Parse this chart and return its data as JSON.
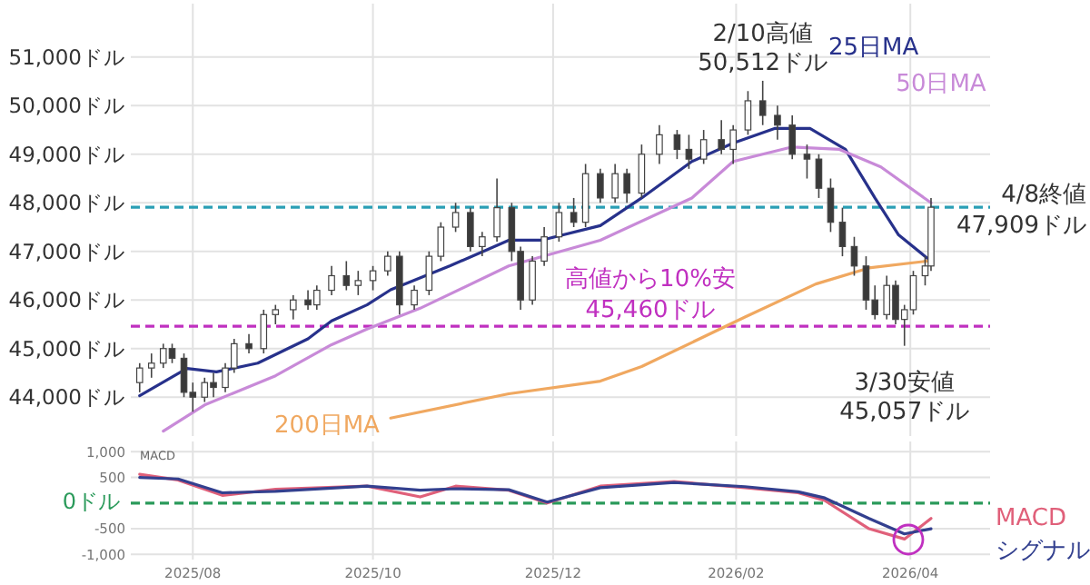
{
  "chart_data": [
    {
      "type": "candlestick",
      "tick_labels": "y",
      "grid": true,
      "x": [
        "2025-07-14",
        "2025-07-18",
        "2025-07-22",
        "2025-07-25",
        "2025-07-29",
        "2025-08-01",
        "2025-08-05",
        "2025-08-08",
        "2025-08-12",
        "2025-08-15",
        "2025-08-20",
        "2025-08-25",
        "2025-08-29",
        "2025-09-04",
        "2025-09-09",
        "2025-09-12",
        "2025-09-17",
        "2025-09-22",
        "2025-09-26",
        "2025-10-01",
        "2025-10-06",
        "2025-10-10",
        "2025-10-15",
        "2025-10-20",
        "2025-10-24",
        "2025-10-29",
        "2025-11-03",
        "2025-11-07",
        "2025-11-12",
        "2025-11-17",
        "2025-11-20",
        "2025-11-24",
        "2025-11-28",
        "2025-12-03",
        "2025-12-08",
        "2025-12-12",
        "2025-12-17",
        "2025-12-22",
        "2025-12-26",
        "2025-12-31",
        "2026-01-06",
        "2026-01-12",
        "2026-01-16",
        "2026-01-21",
        "2026-01-27",
        "2026-01-31",
        "2026-02-05",
        "2026-02-10",
        "2026-02-15",
        "2026-02-20",
        "2026-02-25",
        "2026-03-01",
        "2026-03-05",
        "2026-03-09",
        "2026-03-13",
        "2026-03-17",
        "2026-03-20",
        "2026-03-24",
        "2026-03-27",
        "2026-03-30",
        "2026-04-02",
        "2026-04-06",
        "2026-04-08"
      ],
      "ohlc": [
        [
          44300,
          44700,
          44100,
          44600
        ],
        [
          44600,
          44900,
          44400,
          44700
        ],
        [
          44700,
          45100,
          44600,
          45000
        ],
        [
          45000,
          45100,
          44700,
          44800
        ],
        [
          44800,
          44900,
          44000,
          44100
        ],
        [
          44100,
          44300,
          43700,
          44000
        ],
        [
          44000,
          44400,
          43900,
          44300
        ],
        [
          44300,
          44500,
          44000,
          44200
        ],
        [
          44200,
          44700,
          44100,
          44600
        ],
        [
          44600,
          45200,
          44500,
          45100
        ],
        [
          45100,
          45300,
          44900,
          45000
        ],
        [
          45000,
          45800,
          44900,
          45700
        ],
        [
          45700,
          45900,
          45500,
          45800
        ],
        [
          45800,
          46100,
          45600,
          46000
        ],
        [
          46000,
          46200,
          45800,
          45900
        ],
        [
          45900,
          46300,
          45800,
          46200
        ],
        [
          46200,
          46700,
          46100,
          46500
        ],
        [
          46500,
          46800,
          46200,
          46300
        ],
        [
          46300,
          46600,
          46100,
          46400
        ],
        [
          46400,
          46700,
          46200,
          46600
        ],
        [
          46600,
          47000,
          46500,
          46900
        ],
        [
          46900,
          47000,
          45700,
          45900
        ],
        [
          45900,
          46300,
          45800,
          46200
        ],
        [
          46200,
          47000,
          46100,
          46900
        ],
        [
          46900,
          47600,
          46800,
          47500
        ],
        [
          47500,
          48000,
          47400,
          47800
        ],
        [
          47800,
          47900,
          47000,
          47100
        ],
        [
          47100,
          47400,
          46900,
          47300
        ],
        [
          47300,
          48500,
          47200,
          47900
        ],
        [
          47900,
          48000,
          46800,
          47000
        ],
        [
          47000,
          47100,
          45800,
          46000
        ],
        [
          46000,
          46900,
          45900,
          46800
        ],
        [
          46800,
          47500,
          46700,
          47300
        ],
        [
          47300,
          48000,
          47200,
          47800
        ],
        [
          47800,
          48100,
          47500,
          47600
        ],
        [
          47600,
          48800,
          47500,
          48600
        ],
        [
          48600,
          48700,
          48000,
          48100
        ],
        [
          48100,
          48800,
          48000,
          48600
        ],
        [
          48600,
          48700,
          48000,
          48200
        ],
        [
          48200,
          49200,
          48100,
          49000
        ],
        [
          49000,
          49600,
          48800,
          49400
        ],
        [
          49400,
          49500,
          48900,
          49100
        ],
        [
          49100,
          49400,
          48700,
          48900
        ],
        [
          48900,
          49500,
          48800,
          49300
        ],
        [
          49300,
          49700,
          49000,
          49100
        ],
        [
          49100,
          49600,
          48800,
          49500
        ],
        [
          49500,
          50300,
          49400,
          50100
        ],
        [
          50100,
          50512,
          49600,
          49800
        ],
        [
          49800,
          50000,
          49300,
          49600
        ],
        [
          49600,
          49800,
          48900,
          49000
        ],
        [
          49000,
          49200,
          48500,
          48900
        ],
        [
          48900,
          49000,
          48100,
          48300
        ],
        [
          48300,
          48500,
          47400,
          47600
        ],
        [
          47600,
          47900,
          46900,
          47100
        ],
        [
          47100,
          47300,
          46500,
          46700
        ],
        [
          46700,
          46900,
          45800,
          46000
        ],
        [
          46000,
          46300,
          45600,
          45700
        ],
        [
          45700,
          46500,
          45600,
          46300
        ],
        [
          46300,
          46400,
          45500,
          45600
        ],
        [
          45600,
          45900,
          45057,
          45800
        ],
        [
          45800,
          46600,
          45700,
          46500
        ],
        [
          46500,
          46900,
          46300,
          46700
        ],
        [
          46700,
          48100,
          46600,
          47909
        ]
      ],
      "series": [
        {
          "type": "line",
          "name": "25日MA",
          "color": "#27318b",
          "x": [
            "2025-07-14",
            "2025-07-30",
            "2025-08-09",
            "2025-08-23",
            "2025-09-09",
            "2025-09-17",
            "2025-09-29",
            "2025-10-07",
            "2025-10-27",
            "2025-11-16",
            "2025-11-27",
            "2025-12-17",
            "2025-12-31",
            "2026-01-17",
            "2026-01-31",
            "2026-02-14",
            "2026-02-26",
            "2026-03-10",
            "2026-03-20",
            "2026-03-28",
            "2026-04-08"
          ],
          "values": [
            44030,
            44590,
            44520,
            44700,
            45200,
            45570,
            45900,
            46210,
            46700,
            47230,
            47230,
            47530,
            48100,
            48850,
            49230,
            49530,
            49530,
            49100,
            48100,
            47340,
            46800
          ]
        },
        {
          "type": "line",
          "name": "50日MA",
          "color": "#c88ad8",
          "x": [
            "2025-07-22",
            "2025-08-05",
            "2025-08-29",
            "2025-09-17",
            "2025-09-29",
            "2025-10-17",
            "2025-11-16",
            "2025-12-17",
            "2026-01-17",
            "2026-01-31",
            "2026-02-20",
            "2026-03-08",
            "2026-03-22",
            "2026-04-08"
          ],
          "values": [
            43300,
            43840,
            44440,
            45080,
            45400,
            45830,
            46700,
            47230,
            48100,
            48850,
            49150,
            49100,
            48740,
            48000
          ]
        },
        {
          "type": "line",
          "name": "200日MA",
          "color": "#f0a860",
          "x": [
            "2025-10-07",
            "2025-11-16",
            "2025-12-17",
            "2025-12-31",
            "2026-02-04",
            "2026-02-28",
            "2026-03-18",
            "2026-04-08"
          ],
          "values": [
            43570,
            44070,
            44330,
            44630,
            45650,
            46330,
            46660,
            46810
          ]
        }
      ],
      "xlim": [
        "2025-07-11",
        "2026-04-28"
      ],
      "ylim": [
        43200,
        52100
      ],
      "xticks": [
        {
          "value": "2025-08-01",
          "label": null
        },
        {
          "value": "2025-10-01",
          "label": null
        },
        {
          "value": "2025-12-01",
          "label": null
        },
        {
          "value": "2026-02-01",
          "label": null
        },
        {
          "value": "2026-04-01",
          "label": null
        }
      ],
      "yticks": [
        {
          "value": 44000,
          "label": "44,000ドル"
        },
        {
          "value": 45000,
          "label": "45,000ドル"
        },
        {
          "value": 46000,
          "label": "46,000ドル"
        },
        {
          "value": 47000,
          "label": "47,000ドル"
        },
        {
          "value": 48000,
          "label": "48,000ドル"
        },
        {
          "value": 49000,
          "label": "49,000ドル"
        },
        {
          "value": 50000,
          "label": "50,000ドル"
        },
        {
          "value": 51000,
          "label": "51,000ドル"
        }
      ],
      "ref_lines": [
        {
          "axis": "y",
          "value": 47909,
          "label": "4/8終値 47,909ドル",
          "color": "#2a9fb5",
          "line_style": "dashed"
        },
        {
          "axis": "y",
          "value": 45460,
          "label": "高値から10%安 45,460ドル",
          "color": "#c030c0",
          "line_style": "dashed"
        }
      ],
      "annotations": [
        {
          "text": "2/10高値 50,512ドル",
          "x": "2026-02-10",
          "y": 50512
        },
        {
          "text": "3/30安値 45,057ドル",
          "x": "2026-03-30",
          "y": 45057
        }
      ]
    },
    {
      "type": "line",
      "title": "MACD",
      "grid": true,
      "x": [
        "2025-07-14",
        "2025-07-27",
        "2025-08-11",
        "2025-08-29",
        "2025-09-29",
        "2025-10-17",
        "2025-10-29",
        "2025-11-16",
        "2025-11-29",
        "2025-12-17",
        "2026-01-11",
        "2026-02-04",
        "2026-02-22",
        "2026-03-03",
        "2026-03-18",
        "2026-03-30",
        "2026-04-08"
      ],
      "series": [
        {
          "name": "MACD",
          "color": "#e0607a",
          "values": [
            560,
            450,
            150,
            270,
            330,
            120,
            330,
            250,
            0,
            330,
            420,
            300,
            200,
            50,
            -500,
            -700,
            -300
          ]
        },
        {
          "name": "シグナル",
          "color": "#33408f",
          "values": [
            500,
            470,
            200,
            230,
            330,
            250,
            280,
            260,
            20,
            300,
            400,
            320,
            220,
            100,
            -300,
            -600,
            -500
          ]
        }
      ],
      "xlim": [
        "2025-07-11",
        "2026-04-28"
      ],
      "ylim": [
        -1100,
        1200
      ],
      "xticks": [
        {
          "value": "2025-08-01",
          "label": "2025/08"
        },
        {
          "value": "2025-10-01",
          "label": "2025/10"
        },
        {
          "value": "2025-12-01",
          "label": "2025/12"
        },
        {
          "value": "2026-02-01",
          "label": "2026/02"
        },
        {
          "value": "2026-04-01",
          "label": "2026/04"
        }
      ],
      "yticks": [
        {
          "value": 1000,
          "label": "1,000"
        },
        {
          "value": 500,
          "label": "500"
        },
        {
          "value": -500,
          "label": "-500"
        },
        {
          "value": -1000,
          "label": "-1,000"
        }
      ],
      "ref_lines": [
        {
          "axis": "y",
          "value": 0,
          "label": "0ドル",
          "color": "#2a9a5a",
          "line_style": "dashed"
        }
      ]
    }
  ]
}
